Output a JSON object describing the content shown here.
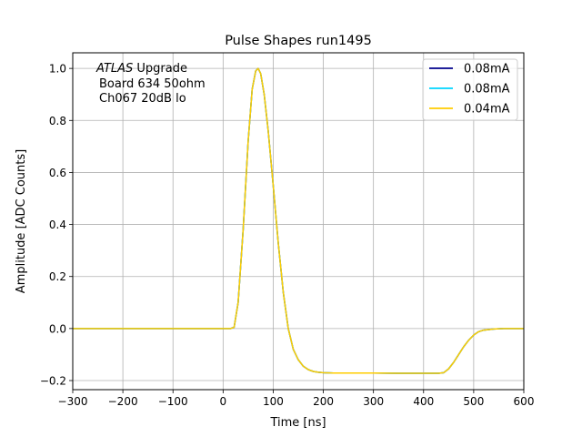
{
  "chart_data": {
    "type": "line",
    "title": "Pulse Shapes run1495",
    "xlabel": "Time [ns]",
    "ylabel": "Amplitude [ADC Counts]",
    "xlim": [
      -300,
      600
    ],
    "ylim": [
      -0.235,
      1.06
    ],
    "grid": true,
    "legend_position": "top-right",
    "xticks": [
      -300,
      -200,
      -100,
      0,
      100,
      200,
      300,
      400,
      500,
      600
    ],
    "xtick_labels": [
      "−300",
      "−200",
      "−100",
      "0",
      "100",
      "200",
      "300",
      "400",
      "500",
      "600"
    ],
    "yticks": [
      -0.2,
      0.0,
      0.2,
      0.4,
      0.6,
      0.8,
      1.0
    ],
    "ytick_labels": [
      "−0.2",
      "0.0",
      "0.2",
      "0.4",
      "0.6",
      "0.8",
      "1.0"
    ],
    "annotation": {
      "line1_italic": "ATLAS",
      "line1_rest": " Upgrade",
      "line2": "Board 634 50ohm",
      "line3": "Ch067 20dB lo"
    },
    "x": [
      -300,
      -200,
      -100,
      0,
      15,
      22,
      30,
      40,
      50,
      58,
      65,
      70,
      75,
      82,
      90,
      100,
      110,
      120,
      130,
      140,
      150,
      160,
      170,
      180,
      190,
      200,
      220,
      250,
      300,
      350,
      400,
      430,
      440,
      450,
      460,
      470,
      480,
      490,
      500,
      510,
      520,
      540,
      560,
      580,
      600
    ],
    "series": [
      {
        "name": "0.08mA",
        "color": "#00008b",
        "values": [
          0.0,
          0.0,
          0.0,
          0.0,
          0.0,
          0.005,
          0.1,
          0.38,
          0.72,
          0.92,
          0.99,
          1.0,
          0.98,
          0.9,
          0.76,
          0.55,
          0.33,
          0.14,
          0.0,
          -0.08,
          -0.12,
          -0.145,
          -0.158,
          -0.165,
          -0.168,
          -0.17,
          -0.171,
          -0.171,
          -0.171,
          -0.172,
          -0.172,
          -0.172,
          -0.17,
          -0.155,
          -0.13,
          -0.1,
          -0.07,
          -0.045,
          -0.025,
          -0.012,
          -0.006,
          -0.002,
          0.0,
          0.0,
          0.0
        ]
      },
      {
        "name": "0.08mA",
        "color": "#00d5ff",
        "values": [
          0.0,
          0.0,
          0.0,
          0.0,
          0.0,
          0.005,
          0.1,
          0.38,
          0.72,
          0.92,
          0.99,
          1.0,
          0.98,
          0.9,
          0.76,
          0.55,
          0.33,
          0.14,
          0.0,
          -0.08,
          -0.12,
          -0.145,
          -0.158,
          -0.165,
          -0.168,
          -0.17,
          -0.171,
          -0.171,
          -0.171,
          -0.172,
          -0.172,
          -0.172,
          -0.17,
          -0.155,
          -0.13,
          -0.1,
          -0.07,
          -0.045,
          -0.025,
          -0.012,
          -0.006,
          -0.002,
          0.0,
          0.0,
          0.0
        ]
      },
      {
        "name": "0.04mA",
        "color": "#ffcc00",
        "values": [
          0.0,
          0.0,
          0.0,
          0.0,
          0.0,
          0.005,
          0.1,
          0.38,
          0.72,
          0.92,
          0.99,
          1.0,
          0.98,
          0.9,
          0.76,
          0.55,
          0.33,
          0.14,
          0.0,
          -0.08,
          -0.12,
          -0.145,
          -0.158,
          -0.165,
          -0.168,
          -0.17,
          -0.171,
          -0.171,
          -0.171,
          -0.172,
          -0.172,
          -0.172,
          -0.17,
          -0.155,
          -0.13,
          -0.1,
          -0.07,
          -0.045,
          -0.025,
          -0.012,
          -0.006,
          -0.002,
          0.0,
          0.0,
          0.0
        ]
      }
    ]
  }
}
